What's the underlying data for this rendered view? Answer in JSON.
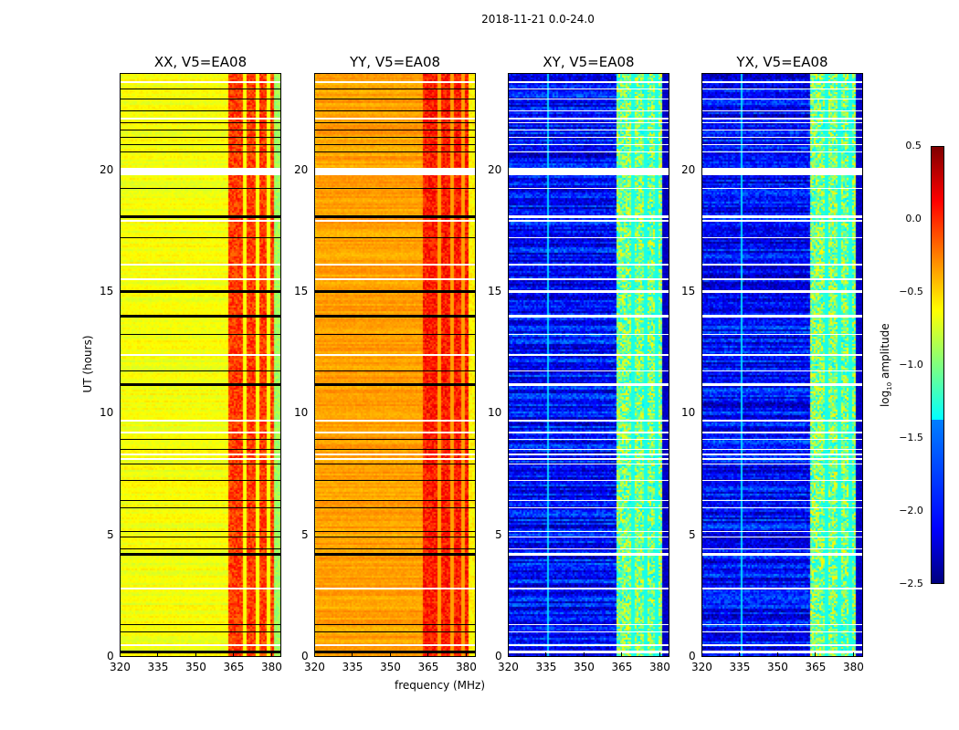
{
  "chart_data": {
    "type": "heatmap",
    "title": "2018-11-21 0.0-24.0",
    "xlabel": "frequency (MHz)",
    "ylabel": "UT (hours)",
    "xlim": [
      320,
      384
    ],
    "ylim": [
      0,
      24
    ],
    "xticks": [
      "320",
      "335",
      "350",
      "365",
      "380"
    ],
    "yticks": [
      "0",
      "5",
      "10",
      "15",
      "20"
    ],
    "colormap": "jet",
    "colorbar": {
      "label": "log10 amplitude",
      "range": [
        -2.5,
        0.5
      ],
      "ticks": [
        "0.5",
        "0.0",
        "−0.5",
        "−1.0",
        "−1.5",
        "−2.0",
        "−2.5"
      ]
    },
    "panels": [
      {
        "title": "XX, V5=EA08",
        "baseline_level": -0.65,
        "band_363_380_level": -0.05,
        "edge_above_380_level": -0.9
      },
      {
        "title": "YY, V5=EA08",
        "baseline_level": -0.35,
        "band_363_380_level": 0.05,
        "edge_above_380_level": -0.6
      },
      {
        "title": "XY, V5=EA08",
        "baseline_level": -2.1,
        "band_363_380_level": -1.0,
        "edge_above_380_level": -2.3
      },
      {
        "title": "YX, V5=EA08",
        "baseline_level": -2.1,
        "band_363_380_level": -1.0,
        "edge_above_380_level": -2.3
      }
    ],
    "flagged_hours": [
      0.3,
      1.1,
      1.4,
      4.3,
      4.5,
      5.0,
      5.2,
      6.2,
      6.5,
      7.3,
      8.0,
      8.6,
      9.0,
      11.3,
      11.8,
      13.3,
      14.1,
      15.1,
      17.3,
      18.2,
      19.3,
      20.0,
      20.8,
      21.1,
      21.4,
      21.7,
      22.0,
      22.5,
      23.0,
      23.4
    ],
    "gap_hours": [
      0.55,
      2.9,
      8.2,
      8.4,
      9.3,
      9.8,
      12.5,
      15.6,
      16.2,
      18.0,
      20.15,
      22.2,
      23.7
    ],
    "bad_channel_gaps_mhz": [
      368.8,
      374.0,
      378.2
    ]
  }
}
